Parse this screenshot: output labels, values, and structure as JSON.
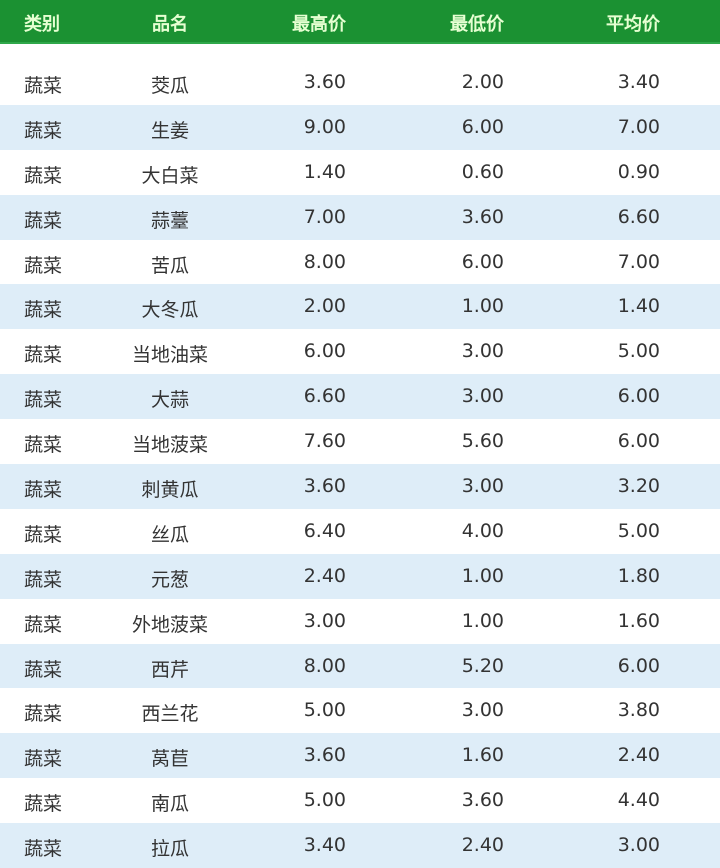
{
  "colors": {
    "header_bg": "#1b9132",
    "header_text": "#e6ffd2",
    "stripe": "#deedf8"
  },
  "columns": [
    "类别",
    "品名",
    "最高价",
    "最低价",
    "平均价"
  ],
  "rows": [
    [
      "蔬菜",
      "茭瓜",
      "3.60",
      "2.00",
      "3.40"
    ],
    [
      "蔬菜",
      "生姜",
      "9.00",
      "6.00",
      "7.00"
    ],
    [
      "蔬菜",
      "大白菜",
      "1.40",
      "0.60",
      "0.90"
    ],
    [
      "蔬菜",
      "蒜薹",
      "7.00",
      "3.60",
      "6.60"
    ],
    [
      "蔬菜",
      "苦瓜",
      "8.00",
      "6.00",
      "7.00"
    ],
    [
      "蔬菜",
      "大冬瓜",
      "2.00",
      "1.00",
      "1.40"
    ],
    [
      "蔬菜",
      "当地油菜",
      "6.00",
      "3.00",
      "5.00"
    ],
    [
      "蔬菜",
      "大蒜",
      "6.60",
      "3.00",
      "6.00"
    ],
    [
      "蔬菜",
      "当地菠菜",
      "7.60",
      "5.60",
      "6.00"
    ],
    [
      "蔬菜",
      "刺黄瓜",
      "3.60",
      "3.00",
      "3.20"
    ],
    [
      "蔬菜",
      "丝瓜",
      "6.40",
      "4.00",
      "5.00"
    ],
    [
      "蔬菜",
      "元葱",
      "2.40",
      "1.00",
      "1.80"
    ],
    [
      "蔬菜",
      "外地菠菜",
      "3.00",
      "1.00",
      "1.60"
    ],
    [
      "蔬菜",
      "西芹",
      "8.00",
      "5.20",
      "6.00"
    ],
    [
      "蔬菜",
      "西兰花",
      "5.00",
      "3.00",
      "3.80"
    ],
    [
      "蔬菜",
      "莴苣",
      "3.60",
      "1.60",
      "2.40"
    ],
    [
      "蔬菜",
      "南瓜",
      "5.00",
      "3.60",
      "4.40"
    ],
    [
      "蔬菜",
      "拉瓜",
      "3.40",
      "2.40",
      "3.00"
    ]
  ]
}
